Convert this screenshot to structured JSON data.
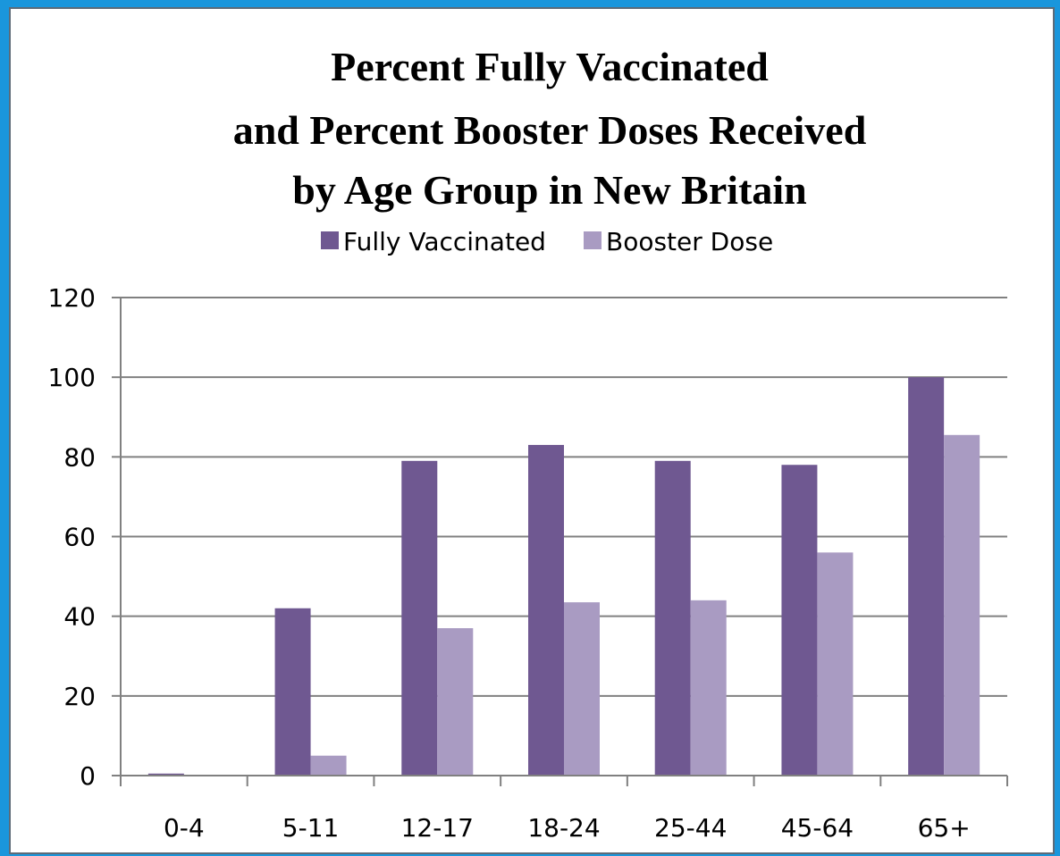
{
  "chart_data": {
    "type": "bar",
    "title_lines": [
      "Percent Fully Vaccinated",
      "and Percent Booster Doses Received",
      "by Age Group in New Britain"
    ],
    "categories": [
      "0-4",
      "5-11",
      "12-17",
      "18-24",
      "25-44",
      "45-64",
      "65+"
    ],
    "series": [
      {
        "name": "Fully Vaccinated",
        "color": "#6f5891",
        "values": [
          0.5,
          42,
          79,
          83,
          79,
          78,
          100
        ]
      },
      {
        "name": "Booster Dose",
        "color": "#a99bc2",
        "values": [
          0,
          5,
          37,
          43.5,
          44,
          56,
          85.5
        ]
      }
    ],
    "ylim": [
      0,
      120
    ],
    "yticks": [
      "0",
      "20",
      "40",
      "60",
      "80",
      "100",
      "120"
    ],
    "grid": true,
    "legend_position": "top"
  }
}
